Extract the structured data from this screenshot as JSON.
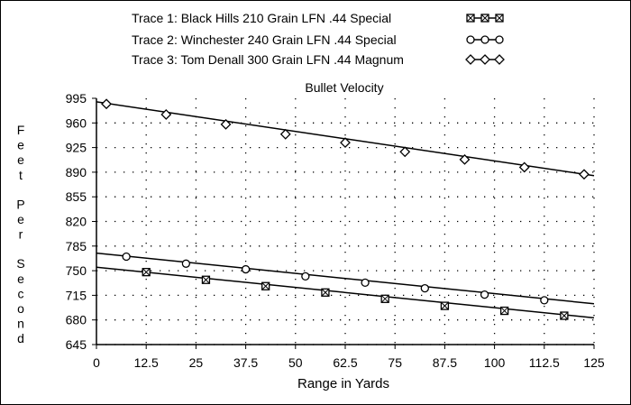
{
  "chart_data": {
    "type": "line",
    "title": "Bullet Velocity",
    "xlabel": "Range in Yards",
    "ylabel": "Feet Per Second",
    "xlim": [
      0,
      125
    ],
    "ylim": [
      645,
      995
    ],
    "x_ticks": [
      "0",
      "12.5",
      "25",
      "37.5",
      "50",
      "62.5",
      "75",
      "87.5",
      "100",
      "112.5",
      "125"
    ],
    "y_ticks": [
      "995",
      "960",
      "925",
      "890",
      "855",
      "820",
      "785",
      "750",
      "715",
      "680",
      "645"
    ],
    "grid": "dotted",
    "legend_position": "top",
    "series": [
      {
        "name": "Trace 1:  Black Hills 210 Grain LFN .44 Special",
        "marker": "square-x",
        "x": [
          12.5,
          27.5,
          42.5,
          57.5,
          72.5,
          87.5,
          102.5,
          117.5
        ],
        "y": [
          748,
          737,
          728,
          719,
          710,
          700,
          693,
          686
        ],
        "line": {
          "x": [
            0,
            125
          ],
          "y": [
            755,
            683
          ]
        }
      },
      {
        "name": "Trace 2:  Winchester 240 Grain LFN .44 Special",
        "marker": "circle",
        "x": [
          7.5,
          22.5,
          37.5,
          52.5,
          67.5,
          82.5,
          97.5,
          112.5
        ],
        "y": [
          770,
          760,
          752,
          742,
          733,
          725,
          716,
          708
        ],
        "line": {
          "x": [
            0,
            125
          ],
          "y": [
            775,
            703
          ]
        }
      },
      {
        "name": "Trace 3:  Tom Denall 300 Grain LFN .44 Magnum",
        "marker": "diamond",
        "x": [
          2.5,
          17.5,
          32.5,
          47.5,
          62.5,
          77.5,
          92.5,
          107.5,
          122.5
        ],
        "y": [
          987,
          972,
          958,
          944,
          932,
          919,
          908,
          897,
          887
        ],
        "line": {
          "x": [
            0,
            125
          ],
          "y": [
            990,
            885
          ]
        }
      }
    ]
  }
}
